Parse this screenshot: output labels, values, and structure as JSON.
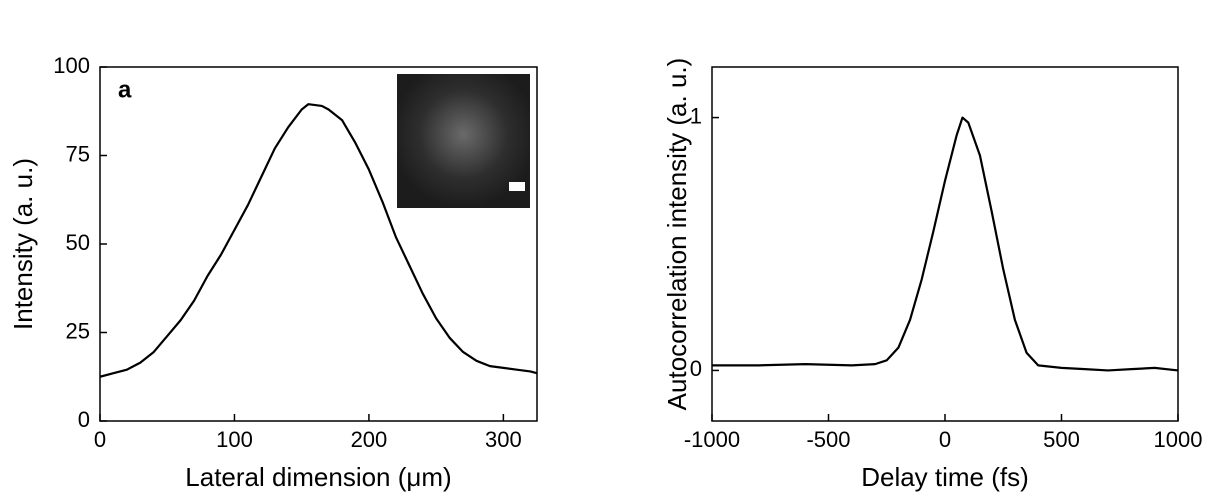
{
  "chart_data": [
    {
      "type": "line",
      "panel_label": "a",
      "xlabel": "Lateral dimension (μm)",
      "ylabel": "Intensity (a. u.)",
      "xlim": [
        0,
        325
      ],
      "ylim": [
        0,
        100
      ],
      "xticks": [
        0,
        100,
        200,
        300
      ],
      "yticks": [
        0,
        25,
        50,
        75,
        100
      ],
      "series": [
        {
          "color": "#000000",
          "x": [
            0,
            10,
            20,
            30,
            40,
            50,
            60,
            70,
            80,
            90,
            100,
            110,
            120,
            130,
            140,
            150,
            155,
            165,
            170,
            180,
            190,
            200,
            210,
            220,
            230,
            240,
            250,
            260,
            270,
            280,
            290,
            300,
            310,
            320,
            325
          ],
          "values": [
            12.5,
            13.5,
            14.5,
            16.5,
            19.5,
            24,
            28.5,
            34,
            41,
            47,
            54,
            61,
            69,
            77,
            83,
            88,
            89.5,
            89,
            88,
            85,
            78.5,
            71,
            62,
            52,
            44,
            36,
            29,
            23.5,
            19.5,
            17,
            15.5,
            15,
            14.5,
            14,
            13.5
          ]
        }
      ]
    },
    {
      "type": "line",
      "xlabel": "Delay time (fs)",
      "ylabel": "Autocorrelation intensity (a. u.)",
      "xlim": [
        -1000,
        1000
      ],
      "ylim": [
        -0.2,
        1.2
      ],
      "xticks": [
        -1000,
        -500,
        0,
        500,
        1000
      ],
      "yticks": [
        0,
        1
      ],
      "series": [
        {
          "color": "#000000",
          "x": [
            -1000,
            -800,
            -600,
            -400,
            -300,
            -250,
            -200,
            -150,
            -100,
            -50,
            0,
            50,
            75,
            100,
            150,
            200,
            250,
            300,
            350,
            400,
            500,
            600,
            700,
            800,
            900,
            1000
          ],
          "values": [
            0.02,
            0.02,
            0.025,
            0.02,
            0.025,
            0.04,
            0.09,
            0.2,
            0.36,
            0.55,
            0.75,
            0.93,
            1.0,
            0.98,
            0.85,
            0.63,
            0.4,
            0.2,
            0.07,
            0.02,
            0.01,
            0.005,
            0,
            0.005,
            0.01,
            0
          ]
        }
      ]
    }
  ]
}
